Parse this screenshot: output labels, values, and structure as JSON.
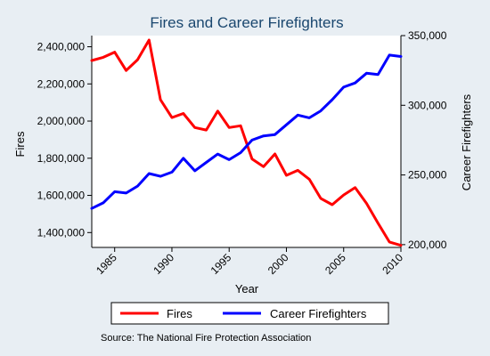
{
  "chart_data": {
    "type": "line",
    "title": "Fires and Career Firefighters",
    "xlabel": "Year",
    "ylabel_left": "Fires",
    "ylabel_right": "Career Firefighters",
    "xlim": [
      1983,
      2010
    ],
    "ylim_left": [
      1320000,
      2460000
    ],
    "ylim_right": [
      198000,
      350000
    ],
    "x_ticks": [
      1985,
      1990,
      1995,
      2000,
      2005,
      2010
    ],
    "y_ticks_left": [
      1400000,
      1600000,
      1800000,
      2000000,
      2200000,
      2400000
    ],
    "y_ticks_right": [
      200000,
      250000,
      300000,
      350000
    ],
    "y_tick_labels_left": [
      "1,400,000",
      "1,600,000",
      "1,800,000",
      "2,000,000",
      "2,200,000",
      "2,400,000"
    ],
    "y_tick_labels_right": [
      "200,000",
      "250,000",
      "300,000",
      "350,000"
    ],
    "legend_position": "bottom",
    "grid": false,
    "source": "Source: The National Fire Protection Association",
    "x": [
      1983,
      1984,
      1985,
      1986,
      1987,
      1988,
      1989,
      1990,
      1991,
      1992,
      1993,
      1994,
      1995,
      1996,
      1997,
      1998,
      1999,
      2000,
      2001,
      2002,
      2003,
      2004,
      2005,
      2006,
      2007,
      2008,
      2009,
      2010
    ],
    "series": [
      {
        "name": "Fires",
        "axis": "left",
        "color": "#ff0000",
        "values": [
          2326000,
          2343000,
          2371000,
          2272000,
          2330000,
          2436000,
          2115000,
          2019000,
          2041000,
          1965000,
          1952000,
          2054000,
          1965000,
          1975000,
          1796000,
          1755000,
          1823000,
          1708000,
          1735000,
          1687000,
          1584000,
          1550000,
          1602000,
          1642000,
          1557000,
          1451000,
          1349000,
          1331000
        ]
      },
      {
        "name": "Career Firefighters",
        "axis": "right",
        "color": "#0000ff",
        "values": [
          226000,
          230000,
          238000,
          237000,
          242000,
          251000,
          249000,
          252000,
          262000,
          253000,
          259000,
          265000,
          261000,
          266000,
          275000,
          278000,
          279000,
          286000,
          293000,
          291000,
          296000,
          304000,
          313000,
          316000,
          323000,
          322000,
          336000,
          335000
        ]
      }
    ]
  }
}
